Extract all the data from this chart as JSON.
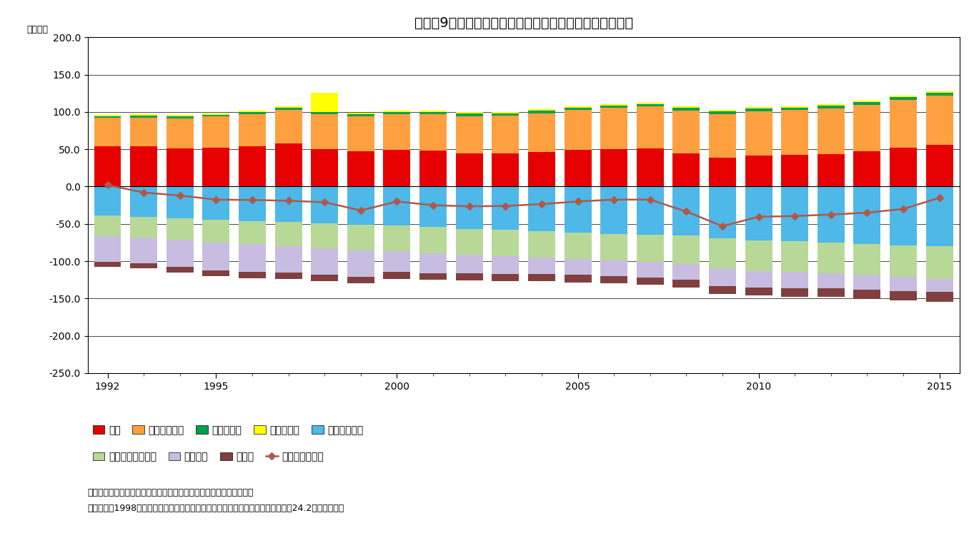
{
  "title": "（図蠆9）　日本の基礎的財政収支とその構成項目の推移",
  "ylabel": "（兆円）",
  "years": [
    1992,
    1993,
    1994,
    1995,
    1996,
    1997,
    1998,
    1999,
    2000,
    2001,
    2002,
    2003,
    2004,
    2005,
    2006,
    2007,
    2008,
    2009,
    2010,
    2011,
    2012,
    2013,
    2014,
    2015
  ],
  "税収": [
    54.4,
    54.1,
    51.1,
    51.9,
    53.9,
    57.8,
    50.6,
    47.2,
    49.1,
    47.9,
    44.1,
    44.0,
    46.0,
    49.0,
    50.6,
    51.0,
    44.2,
    38.7,
    41.5,
    42.1,
    43.9,
    47.0,
    52.0,
    56.3
  ],
  "社会保障負担": [
    37.4,
    38.6,
    40.3,
    41.9,
    43.3,
    45.0,
    46.2,
    47.0,
    47.8,
    49.0,
    50.3,
    51.2,
    52.4,
    53.4,
    54.6,
    56.2,
    57.5,
    58.5,
    59.4,
    60.2,
    61.1,
    62.2,
    63.8,
    65.1
  ],
  "純経常移転": [
    2.5,
    2.5,
    2.5,
    2.6,
    2.7,
    2.8,
    2.9,
    3.0,
    3.0,
    3.0,
    3.1,
    3.1,
    3.2,
    3.2,
    3.3,
    3.4,
    3.5,
    3.7,
    3.7,
    3.7,
    3.8,
    3.9,
    4.0,
    4.1
  ],
  "純資本移転": [
    2.0,
    2.0,
    2.0,
    2.0,
    2.0,
    2.0,
    26.0,
    2.0,
    2.0,
    2.0,
    2.0,
    2.0,
    2.0,
    2.0,
    2.0,
    2.0,
    2.0,
    2.0,
    2.0,
    2.0,
    2.0,
    2.0,
    2.0,
    2.0
  ],
  "社会保障給付": [
    -38.5,
    -40.5,
    -42.5,
    -44.5,
    -46.0,
    -47.5,
    -49.5,
    -51.5,
    -52.5,
    -54.5,
    -56.5,
    -58.0,
    -60.0,
    -61.5,
    -63.5,
    -65.0,
    -66.0,
    -69.5,
    -72.0,
    -73.5,
    -75.0,
    -77.0,
    -79.0,
    -80.0
  ],
  "政府最終消費支出": [
    -28.0,
    -28.0,
    -29.0,
    -30.5,
    -31.5,
    -32.5,
    -33.5,
    -34.5,
    -34.5,
    -34.5,
    -34.5,
    -35.0,
    -35.0,
    -35.5,
    -35.5,
    -36.0,
    -37.5,
    -40.0,
    -41.0,
    -41.0,
    -41.5,
    -41.5,
    -42.0,
    -44.0
  ],
  "公共投資": [
    -34.5,
    -34.5,
    -36.0,
    -37.0,
    -37.0,
    -35.5,
    -35.5,
    -35.0,
    -27.5,
    -27.0,
    -25.0,
    -24.0,
    -22.5,
    -21.5,
    -21.0,
    -20.5,
    -21.5,
    -23.5,
    -22.0,
    -21.5,
    -20.0,
    -20.0,
    -19.5,
    -17.5
  ],
  "その他": [
    -7.0,
    -7.0,
    -7.5,
    -8.0,
    -8.5,
    -8.5,
    -8.5,
    -9.0,
    -9.0,
    -9.0,
    -9.5,
    -9.5,
    -9.5,
    -10.0,
    -10.0,
    -10.5,
    -10.5,
    -11.0,
    -11.0,
    -11.5,
    -11.0,
    -12.0,
    -12.5,
    -12.5
  ],
  "基礎的財政収支": [
    2.0,
    -8.0,
    -12.0,
    -17.5,
    -18.0,
    -19.0,
    -21.0,
    -32.0,
    -20.0,
    -25.0,
    -26.5,
    -26.0,
    -23.5,
    -20.0,
    -17.5,
    -17.5,
    -33.5,
    -53.0,
    -40.5,
    -39.5,
    -37.5,
    -35.0,
    -30.0,
    -15.0
  ],
  "colors": {
    "税収": "#e60000",
    "社会保障負担": "#ffa040",
    "純経常移転": "#00a050",
    "純資本移転": "#ffff00",
    "社会保障給付": "#4eb8e8",
    "政府最終消費支出": "#b8d898",
    "公共投資": "#c8bce0",
    "その他": "#804040",
    "基礎的財政収支": "#b05848"
  },
  "ylim": [
    -250.0,
    200.0
  ],
  "yticks": [
    -250.0,
    -200.0,
    -150.0,
    -100.0,
    -50.0,
    0.0,
    50.0,
    100.0,
    150.0,
    200.0
  ],
  "note1": "（資料）　内閣府「国民経済計算」をもとにニッセイ基礎研究所作成",
  "note2": "（注）　　1998年の純資本移転は、日本国有鉄道清算事業団からの債務承継（約24.2兆円）を含む",
  "legend_row1": [
    "税収",
    "社会保障負担",
    "純経常移転",
    "純資本移転",
    "社会保障給付"
  ],
  "legend_row2": [
    "政府最終消費支出",
    "公共投資",
    "その他",
    "基礎的財政収支"
  ]
}
